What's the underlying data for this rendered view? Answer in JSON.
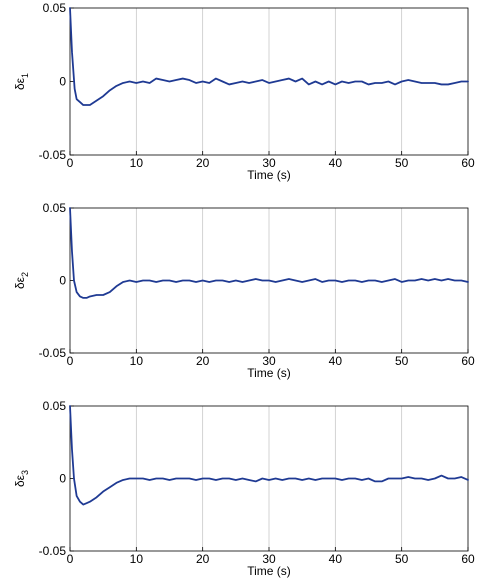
{
  "chart_data": [
    {
      "type": "line",
      "ylabel_symbol": "δε",
      "ylabel_subscript": "1",
      "xlabel": "Time (s)",
      "xlim": [
        0,
        60
      ],
      "ylim": [
        -0.05,
        0.05
      ],
      "xticks": [
        0,
        10,
        20,
        30,
        40,
        50,
        60
      ],
      "yticks": [
        -0.05,
        0,
        0.05
      ],
      "ytick_labels": [
        "-0.05",
        "0",
        "0.05"
      ],
      "grid": "vertical",
      "line_color": "#1f3a93",
      "x": [
        0,
        0.3,
        0.7,
        1,
        1.5,
        2,
        2.5,
        3,
        4,
        5,
        6,
        7,
        8,
        9,
        10,
        11,
        12,
        13,
        14,
        15,
        16,
        17,
        18,
        19,
        20,
        21,
        22,
        23,
        24,
        25,
        26,
        27,
        28,
        29,
        30,
        31,
        32,
        33,
        34,
        35,
        36,
        37,
        38,
        39,
        40,
        41,
        42,
        43,
        44,
        45,
        46,
        47,
        48,
        49,
        50,
        51,
        52,
        53,
        54,
        55,
        56,
        57,
        58,
        59,
        60
      ],
      "y": [
        0.05,
        0.02,
        -0.005,
        -0.012,
        -0.014,
        -0.016,
        -0.016,
        -0.016,
        -0.013,
        -0.01,
        -0.006,
        -0.003,
        -0.001,
        0.0,
        -0.001,
        0.0,
        -0.001,
        0.002,
        0.001,
        0.0,
        0.001,
        0.002,
        0.001,
        -0.001,
        0.0,
        -0.001,
        0.002,
        0.0,
        -0.002,
        -0.001,
        0.0,
        -0.001,
        0.0,
        0.001,
        -0.001,
        0.0,
        0.001,
        0.002,
        0.0,
        0.002,
        -0.002,
        0.0,
        -0.002,
        0.0,
        -0.002,
        0.0,
        -0.001,
        0.0,
        0.0,
        -0.002,
        -0.001,
        -0.001,
        0.0,
        -0.002,
        0.0,
        0.001,
        0.0,
        -0.001,
        -0.001,
        -0.001,
        -0.002,
        -0.002,
        -0.001,
        0.0,
        0.0
      ]
    },
    {
      "type": "line",
      "ylabel_symbol": "δε",
      "ylabel_subscript": "2",
      "xlabel": "Time (s)",
      "xlim": [
        0,
        60
      ],
      "ylim": [
        -0.05,
        0.05
      ],
      "xticks": [
        0,
        10,
        20,
        30,
        40,
        50,
        60
      ],
      "yticks": [
        -0.05,
        0,
        0.05
      ],
      "ytick_labels": [
        "-0.05",
        "0",
        "0.05"
      ],
      "grid": "vertical",
      "line_color": "#1f3a93",
      "x": [
        0,
        0.3,
        0.6,
        1,
        1.5,
        2,
        2.5,
        3,
        4,
        5,
        6,
        7,
        8,
        9,
        10,
        11,
        12,
        13,
        14,
        15,
        16,
        17,
        18,
        19,
        20,
        21,
        22,
        23,
        24,
        25,
        26,
        27,
        28,
        29,
        30,
        31,
        32,
        33,
        34,
        35,
        36,
        37,
        38,
        39,
        40,
        41,
        42,
        43,
        44,
        45,
        46,
        47,
        48,
        49,
        50,
        51,
        52,
        53,
        54,
        55,
        56,
        57,
        58,
        59,
        60
      ],
      "y": [
        0.05,
        0.02,
        0.0,
        -0.008,
        -0.011,
        -0.012,
        -0.012,
        -0.011,
        -0.01,
        -0.01,
        -0.008,
        -0.004,
        -0.001,
        0.0,
        -0.001,
        0.0,
        0.0,
        -0.001,
        0.0,
        0.0,
        -0.001,
        0.0,
        0.0,
        -0.001,
        0.0,
        -0.001,
        0.0,
        0.0,
        -0.001,
        0.0,
        -0.001,
        0.0,
        0.001,
        0.0,
        0.0,
        -0.001,
        0.0,
        0.001,
        0.0,
        -0.001,
        0.0,
        0.001,
        -0.001,
        0.0,
        0.0,
        -0.001,
        0.0,
        0.0,
        -0.001,
        0.0,
        0.0,
        -0.001,
        0.0,
        0.001,
        -0.001,
        0.0,
        0.0,
        0.001,
        0.0,
        0.001,
        0.0,
        0.001,
        0.0,
        0.0,
        -0.001
      ]
    },
    {
      "type": "line",
      "ylabel_symbol": "δε",
      "ylabel_subscript": "3",
      "xlabel": "Time (s)",
      "xlim": [
        0,
        60
      ],
      "ylim": [
        -0.05,
        0.05
      ],
      "xticks": [
        0,
        10,
        20,
        30,
        40,
        50,
        60
      ],
      "yticks": [
        -0.05,
        0,
        0.05
      ],
      "ytick_labels": [
        "-0.05",
        "0",
        "0.05"
      ],
      "grid": "vertical",
      "line_color": "#1f3a93",
      "x": [
        0,
        0.3,
        0.6,
        1,
        1.5,
        2,
        2.5,
        3,
        4,
        5,
        6,
        7,
        8,
        9,
        10,
        11,
        12,
        13,
        14,
        15,
        16,
        17,
        18,
        19,
        20,
        21,
        22,
        23,
        24,
        25,
        26,
        27,
        28,
        29,
        30,
        31,
        32,
        33,
        34,
        35,
        36,
        37,
        38,
        39,
        40,
        41,
        42,
        43,
        44,
        45,
        46,
        47,
        48,
        49,
        50,
        51,
        52,
        53,
        54,
        55,
        56,
        57,
        58,
        59,
        60
      ],
      "y": [
        0.05,
        0.02,
        0.0,
        -0.012,
        -0.016,
        -0.018,
        -0.017,
        -0.016,
        -0.013,
        -0.009,
        -0.006,
        -0.003,
        -0.001,
        0.0,
        0.0,
        0.0,
        -0.001,
        0.0,
        0.0,
        -0.001,
        0.0,
        0.0,
        0.0,
        -0.001,
        0.0,
        0.0,
        -0.001,
        0.0,
        0.0,
        -0.001,
        0.0,
        -0.001,
        -0.002,
        0.0,
        -0.001,
        0.0,
        -0.001,
        0.0,
        0.0,
        -0.001,
        0.0,
        -0.001,
        0.0,
        0.0,
        0.0,
        -0.001,
        0.0,
        0.0,
        -0.001,
        0.0,
        -0.002,
        -0.002,
        0.0,
        0.0,
        0.0,
        0.001,
        0.0,
        0.0,
        -0.001,
        0.0,
        0.002,
        0.0,
        0.0,
        0.001,
        -0.001
      ]
    }
  ]
}
